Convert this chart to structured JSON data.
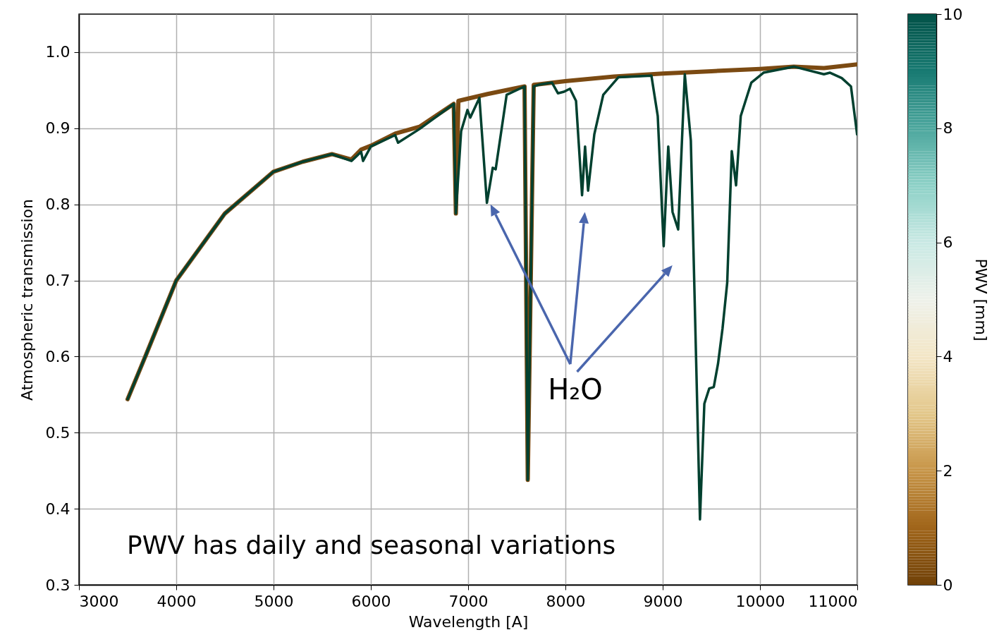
{
  "chart_data": {
    "type": "line",
    "xlabel": "Wavelength [A]",
    "ylabel": "Atmospheric transmission",
    "clabel": "PWV [mm]",
    "xlim": [
      3000,
      11000
    ],
    "ylim": [
      0.3,
      1.05
    ],
    "xticks": [
      3000,
      4000,
      5000,
      6000,
      7000,
      8000,
      9000,
      10000,
      11000
    ],
    "yticks": [
      0.3,
      0.4,
      0.5,
      0.6,
      0.7,
      0.8,
      0.9,
      {
        "value": 1,
        "label": "1.0"
      }
    ],
    "clim": [
      0,
      10
    ],
    "cticks": [
      0,
      2,
      4,
      6,
      8,
      10
    ],
    "grid": true,
    "line_style": "solid",
    "marker": "none",
    "series": [
      {
        "color": "#7b4a12",
        "x": [
          3500,
          3688,
          4000,
          4500,
          5000,
          5300,
          5600,
          5800,
          5900,
          6000,
          6250,
          6500,
          6852,
          6874,
          6900,
          7200,
          7580,
          7613,
          7674,
          8000,
          8500,
          9000,
          9500,
          10000,
          10347,
          10657,
          11000
        ],
        "values": [
          0.544,
          0.602,
          0.7,
          0.788,
          0.843,
          0.856,
          0.866,
          0.859,
          0.872,
          0.877,
          0.893,
          0.902,
          0.932,
          0.788,
          0.936,
          0.945,
          0.955,
          0.438,
          0.957,
          0.962,
          0.968,
          0.972,
          0.975,
          0.978,
          0.981,
          0.979,
          0.984
        ]
      },
      {
        "color": "#00402f",
        "x": [
          3500,
          3688,
          4000,
          4500,
          5000,
          5300,
          5600,
          5800,
          5900,
          5920,
          6000,
          6250,
          6280,
          6500,
          6852,
          6874,
          6928,
          6993,
          7022,
          7116,
          7193,
          7253,
          7283,
          7396,
          7580,
          7613,
          7674,
          7722,
          7862,
          7923,
          7986,
          8047,
          8109,
          8171,
          8202,
          8233,
          8297,
          8389,
          8544,
          8884,
          8949,
          9010,
          9057,
          9101,
          9159,
          9227,
          9289,
          9383,
          9428,
          9478,
          9525,
          9569,
          9615,
          9663,
          9710,
          9754,
          9802,
          9911,
          10036,
          10347,
          10657,
          10720,
          10840,
          10935,
          10998
        ],
        "values": [
          0.544,
          0.602,
          0.7,
          0.788,
          0.843,
          0.856,
          0.866,
          0.857,
          0.869,
          0.857,
          0.876,
          0.891,
          0.881,
          0.899,
          0.932,
          0.788,
          0.896,
          0.924,
          0.914,
          0.94,
          0.802,
          0.848,
          0.846,
          0.944,
          0.955,
          0.438,
          0.955,
          0.957,
          0.96,
          0.946,
          0.948,
          0.952,
          0.936,
          0.812,
          0.876,
          0.818,
          0.892,
          0.944,
          0.967,
          0.969,
          0.916,
          0.745,
          0.876,
          0.79,
          0.767,
          0.971,
          0.884,
          0.386,
          0.538,
          0.558,
          0.56,
          0.591,
          0.637,
          0.697,
          0.87,
          0.825,
          0.916,
          0.96,
          0.973,
          0.981,
          0.971,
          0.973,
          0.966,
          0.955,
          0.892
        ]
      }
    ],
    "annotations": [
      "H₂O",
      "PWV has daily and seasonal variations"
    ]
  }
}
